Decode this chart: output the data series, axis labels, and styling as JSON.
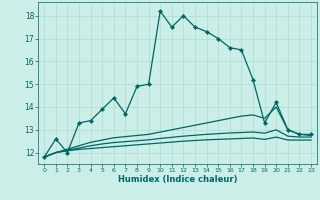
{
  "xlabel": "Humidex (Indice chaleur)",
  "x_main": [
    0,
    1,
    2,
    3,
    4,
    5,
    6,
    7,
    8,
    9,
    10,
    11,
    12,
    13,
    14,
    15,
    16,
    17,
    18,
    19,
    20,
    21,
    22,
    23
  ],
  "y_main": [
    11.8,
    12.6,
    12.0,
    13.3,
    13.4,
    13.9,
    14.4,
    13.7,
    14.9,
    15.0,
    18.2,
    17.5,
    18.0,
    17.5,
    17.3,
    17.0,
    16.6,
    16.5,
    15.2,
    13.3,
    14.2,
    13.0,
    12.8,
    12.8
  ],
  "y_line1": [
    11.8,
    12.0,
    12.15,
    12.3,
    12.45,
    12.55,
    12.65,
    12.7,
    12.75,
    12.8,
    12.9,
    13.0,
    13.1,
    13.2,
    13.3,
    13.4,
    13.5,
    13.6,
    13.65,
    13.5,
    14.0,
    13.0,
    12.8,
    12.75
  ],
  "y_line2": [
    11.8,
    12.0,
    12.1,
    12.2,
    12.3,
    12.38,
    12.44,
    12.48,
    12.52,
    12.56,
    12.62,
    12.67,
    12.72,
    12.76,
    12.8,
    12.83,
    12.86,
    12.88,
    12.9,
    12.85,
    13.0,
    12.72,
    12.68,
    12.68
  ],
  "y_line3": [
    11.8,
    12.0,
    12.08,
    12.14,
    12.18,
    12.22,
    12.26,
    12.3,
    12.34,
    12.38,
    12.42,
    12.46,
    12.5,
    12.53,
    12.56,
    12.58,
    12.6,
    12.62,
    12.64,
    12.58,
    12.68,
    12.55,
    12.55,
    12.55
  ],
  "line_color": "#006666",
  "bg_color": "#cceee8",
  "grid_color": "#aaddcc",
  "ylim": [
    11.5,
    18.6
  ],
  "xlim": [
    -0.5,
    23.5
  ],
  "yticks": [
    12,
    13,
    14,
    15,
    16,
    17,
    18
  ],
  "xticks": [
    0,
    1,
    2,
    3,
    4,
    5,
    6,
    7,
    8,
    9,
    10,
    11,
    12,
    13,
    14,
    15,
    16,
    17,
    18,
    19,
    20,
    21,
    22,
    23
  ]
}
